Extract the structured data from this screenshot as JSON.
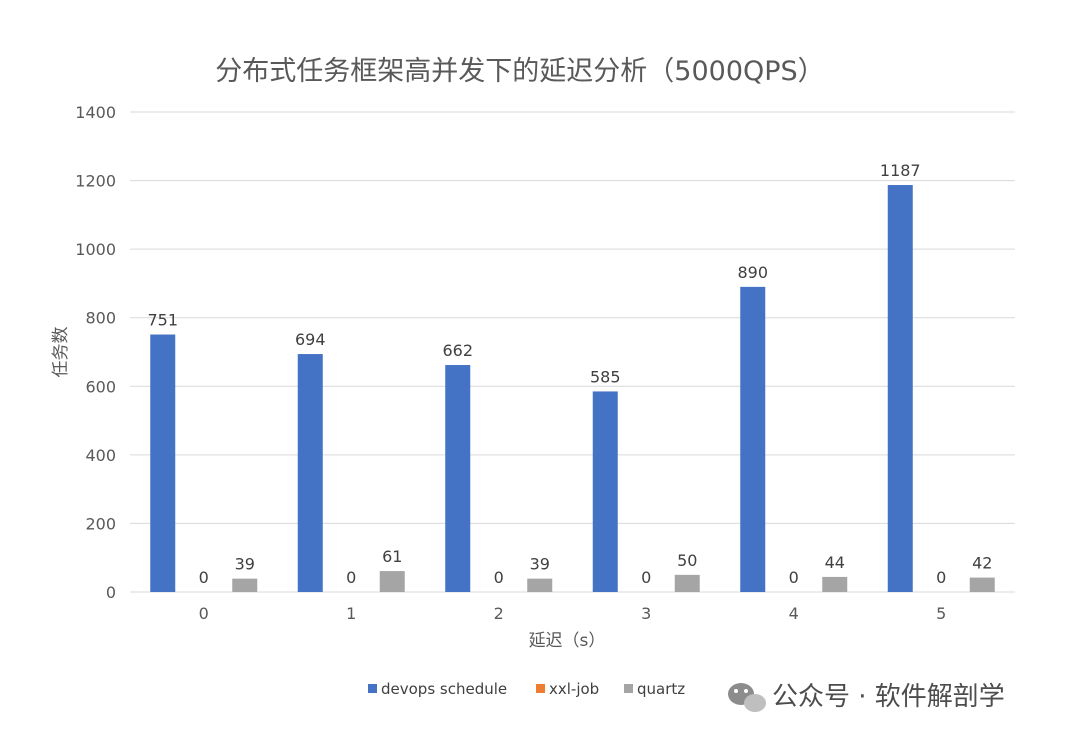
{
  "chart_data": {
    "type": "bar",
    "title": "分布式任务框架高并发下的延迟分析（5000QPS）",
    "xlabel": "延迟（s）",
    "ylabel": "任务数",
    "categories": [
      "0",
      "1",
      "2",
      "3",
      "4",
      "5"
    ],
    "series": [
      {
        "name": "devops schedule",
        "color": "#4472C4",
        "values": [
          751,
          694,
          662,
          585,
          890,
          1187
        ]
      },
      {
        "name": "xxl-job",
        "color": "#ED7D31",
        "values": [
          0,
          0,
          0,
          0,
          0,
          0
        ]
      },
      {
        "name": "quartz",
        "color": "#A5A5A5",
        "values": [
          39,
          61,
          39,
          50,
          44,
          42
        ]
      }
    ],
    "ylim": [
      0,
      1400
    ],
    "yticks": [
      0,
      200,
      400,
      600,
      800,
      1000,
      1200,
      1400
    ],
    "grid": true,
    "legend": "bottom"
  },
  "watermark": {
    "text": "公众号 · 软件解剖学",
    "icon": "wechat-icon"
  }
}
